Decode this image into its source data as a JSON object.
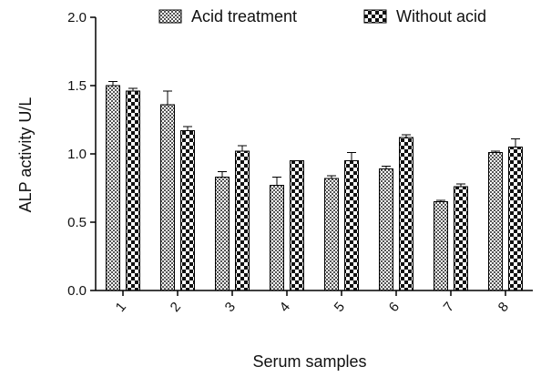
{
  "chart_data": {
    "type": "bar",
    "title": "",
    "xlabel": "Serum samples",
    "ylabel": "ALP activity U/L",
    "categories": [
      "1",
      "2",
      "3",
      "4",
      "5",
      "6",
      "7",
      "8"
    ],
    "ylim": [
      0,
      2.0
    ],
    "yticks": [
      "0.0",
      "0.5",
      "1.0",
      "1.5",
      "2.0"
    ],
    "grid": false,
    "legend_position": "top",
    "series": [
      {
        "name": "Acid treatment",
        "values": [
          1.5,
          1.36,
          0.83,
          0.77,
          0.82,
          0.89,
          0.65,
          1.01
        ],
        "errors": [
          0.03,
          0.1,
          0.04,
          0.06,
          0.02,
          0.02,
          0.01,
          0.01
        ]
      },
      {
        "name": "Without acid",
        "values": [
          1.46,
          1.17,
          1.02,
          0.95,
          0.95,
          1.12,
          0.76,
          1.05
        ],
        "errors": [
          0.02,
          0.03,
          0.04,
          0.0,
          0.06,
          0.02,
          0.02,
          0.06
        ]
      }
    ]
  }
}
